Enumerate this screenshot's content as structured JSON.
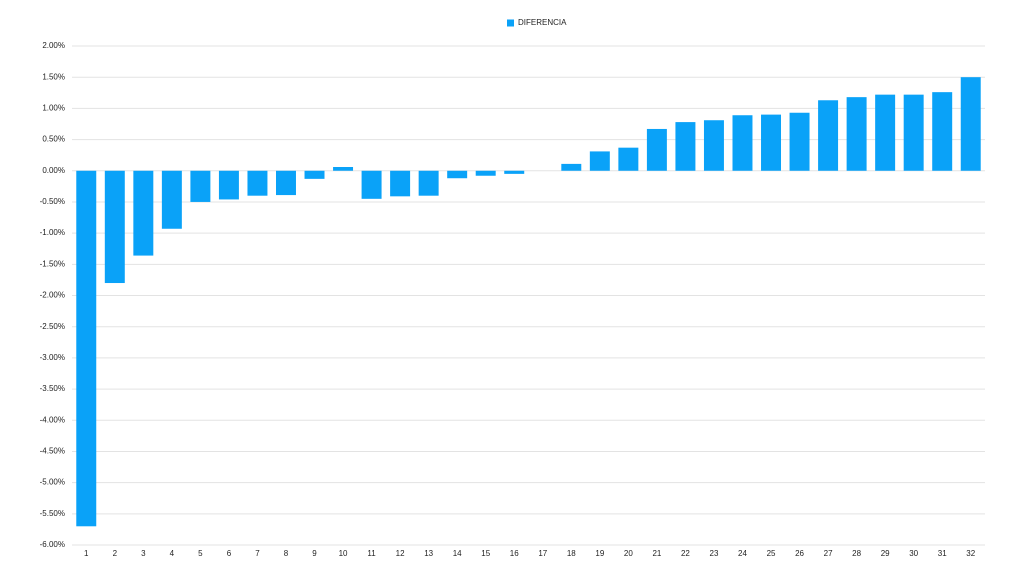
{
  "chart_data": {
    "type": "bar",
    "categories": [
      "1",
      "2",
      "3",
      "4",
      "5",
      "6",
      "7",
      "8",
      "9",
      "10",
      "11",
      "12",
      "13",
      "14",
      "15",
      "16",
      "17",
      "18",
      "19",
      "20",
      "21",
      "22",
      "23",
      "24",
      "25",
      "26",
      "27",
      "28",
      "29",
      "30",
      "31",
      "32"
    ],
    "series": [
      {
        "name": "DIFERENCIA",
        "color": "#0aa2f8",
        "values": [
          -5.7,
          -1.8,
          -1.36,
          -0.93,
          -0.5,
          -0.46,
          -0.4,
          -0.39,
          -0.13,
          0.06,
          -0.45,
          -0.41,
          -0.4,
          -0.12,
          -0.08,
          -0.05,
          0,
          0.11,
          0.31,
          0.37,
          0.67,
          0.78,
          0.81,
          0.89,
          0.9,
          0.93,
          1.13,
          1.18,
          1.22,
          1.22,
          1.26,
          1.5
        ]
      }
    ],
    "ylim": [
      -6,
      2
    ],
    "yticks": [
      {
        "value": 2,
        "label": "2.00%"
      },
      {
        "value": 1.5,
        "label": "1.50%"
      },
      {
        "value": 1,
        "label": "1.00%"
      },
      {
        "value": 0.5,
        "label": "0.50%"
      },
      {
        "value": 0,
        "label": "0.00%"
      },
      {
        "value": -0.5,
        "label": "-0.50%"
      },
      {
        "value": -1,
        "label": "-1.00%"
      },
      {
        "value": -1.5,
        "label": "-1.50%"
      },
      {
        "value": -2,
        "label": "-2.00%"
      },
      {
        "value": -2.5,
        "label": "-2.50%"
      },
      {
        "value": -3,
        "label": "-3.00%"
      },
      {
        "value": -3.5,
        "label": "-3.50%"
      },
      {
        "value": -4,
        "label": "-4.00%"
      },
      {
        "value": -4.5,
        "label": "-4.50%"
      },
      {
        "value": -5,
        "label": "-5.00%"
      },
      {
        "value": -5.5,
        "label": "-5.50%"
      },
      {
        "value": -6,
        "label": "-6.00%"
      }
    ],
    "grid": true,
    "legend": "top"
  }
}
